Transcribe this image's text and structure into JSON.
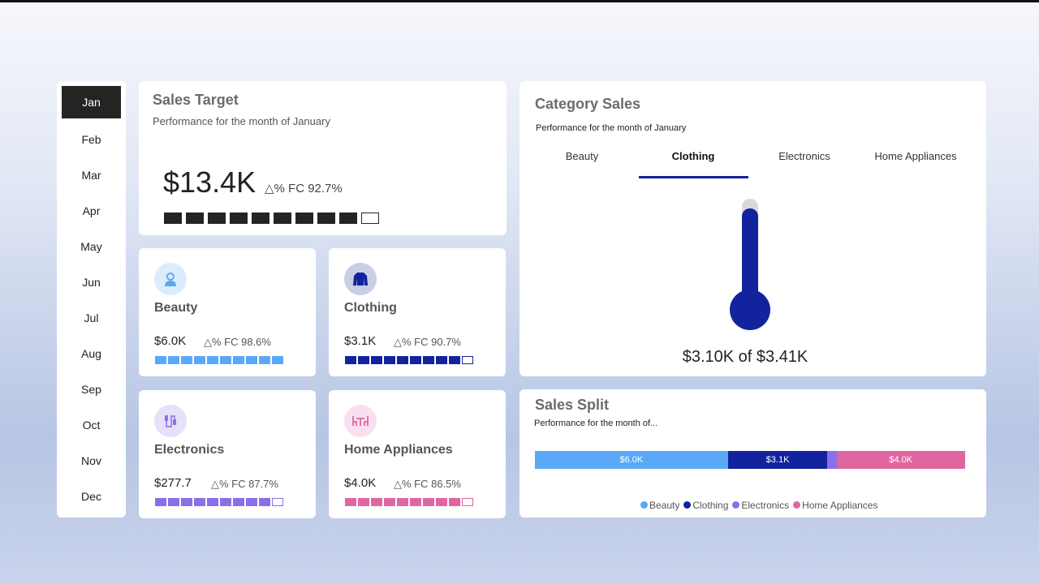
{
  "months": [
    "Jan",
    "Feb",
    "Mar",
    "Apr",
    "May",
    "Jun",
    "Jul",
    "Aug",
    "Sep",
    "Oct",
    "Nov",
    "Dec"
  ],
  "selected_month": "Jan",
  "sales_target": {
    "title": "Sales Target",
    "subtitle": "Performance for the month of January",
    "value": "$13.4K",
    "fc_label": "△% FC 92.7%",
    "progress_filled": 9,
    "progress_total": 10,
    "color": "#252423"
  },
  "categories": [
    {
      "name": "Beauty",
      "value": "$6.0K",
      "fc_label": "△% FC 98.6%",
      "filled": 10,
      "total": 10,
      "color": "#5aa9f7",
      "icon_bg": "#dcecfd",
      "icon": "woman-icon"
    },
    {
      "name": "Clothing",
      "value": "$3.1K",
      "fc_label": "△% FC 90.7%",
      "filled": 9,
      "total": 10,
      "color": "#12239e",
      "icon_bg": "#c9cde6",
      "icon": "sweater-icon"
    },
    {
      "name": "Electronics",
      "value": "$277.7",
      "fc_label": "△% FC 87.7%",
      "filled": 9,
      "total": 10,
      "color": "#8a6fe8",
      "icon_bg": "#e6e0fa",
      "icon": "cable-icon"
    },
    {
      "name": "Home Appliances",
      "value": "$4.0K",
      "fc_label": "△% FC 86.5%",
      "filled": 9,
      "total": 10,
      "color": "#e066a0",
      "icon_bg": "#fae0ee",
      "icon": "dining-table-icon"
    }
  ],
  "category_sales": {
    "title": "Category Sales",
    "subtitle": "Performance for the month of January",
    "tabs": [
      "Beauty",
      "Clothing",
      "Electronics",
      "Home Appliances"
    ],
    "active_tab": "Clothing",
    "gauge_label": "$3.10K of $3.41K",
    "gauge_value": 3.1,
    "gauge_target": 3.41,
    "gauge_color": "#12239e"
  },
  "sales_split": {
    "title": "Sales Split",
    "subtitle": "Performance for the month of...",
    "chart_data": {
      "type": "bar",
      "stacked": true,
      "orientation": "horizontal",
      "series": [
        {
          "name": "Beauty",
          "value": 6.0,
          "label": "$6.0K",
          "color": "#5aa9f7"
        },
        {
          "name": "Clothing",
          "value": 3.1,
          "label": "$3.1K",
          "color": "#12239e"
        },
        {
          "name": "Electronics",
          "value": 0.28,
          "label": "",
          "color": "#8a6fe8"
        },
        {
          "name": "Home Appliances",
          "value": 4.0,
          "label": "$4.0K",
          "color": "#e066a0"
        }
      ],
      "legend": "bottom"
    }
  }
}
